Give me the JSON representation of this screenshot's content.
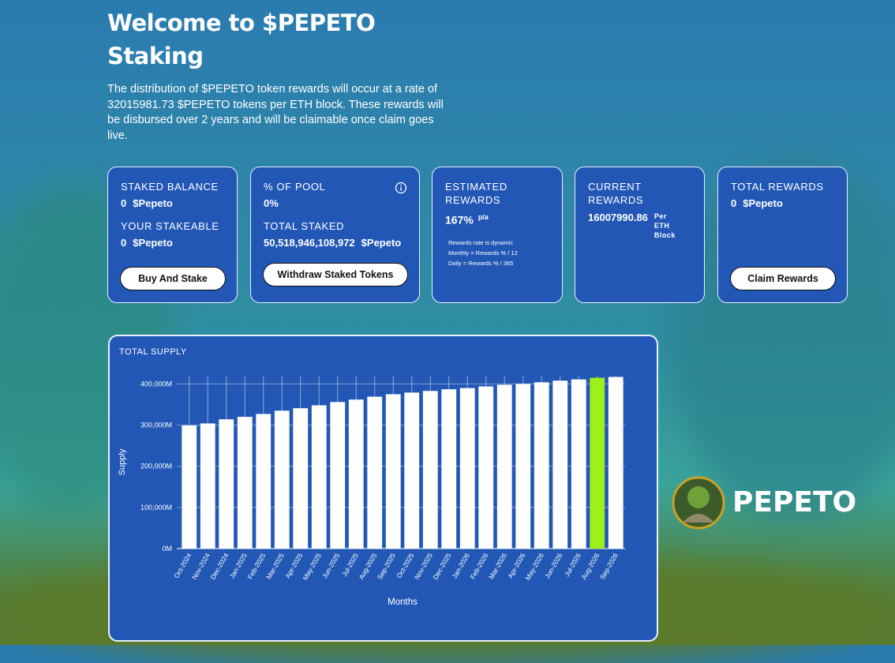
{
  "header": {
    "title_line1": "Welcome to $PEPETO",
    "title_line2": "Staking",
    "description": "The distribution of $PEPETO token rewards will occur at a rate of 32015981.73 $PEPETO tokens per ETH block. These rewards will be disbursed over 2 years and will be claimable once claim goes live."
  },
  "cards": [
    {
      "label": "STAKED BALANCE",
      "value": "0",
      "unit": "$Pepeto",
      "label2": "YOUR STAKEABLE",
      "value2": "0",
      "unit2": "$Pepeto",
      "button": "Buy And Stake"
    },
    {
      "label": "% OF POOL",
      "value": "0%",
      "label2": "TOTAL STAKED",
      "value2": "50,518,946,108,972",
      "unit2": "$Pepeto",
      "button": "Withdraw Staked Tokens"
    },
    {
      "label": "ESTIMATED REWARDS",
      "value": "167%",
      "unit": "p/a",
      "notes": [
        "Rewards rate is dynamic",
        "Monthly = Rewards % / 12",
        "Daily = Rewards % / 365"
      ]
    },
    {
      "label": "CURRENT REWARDS",
      "value": "16007990.86",
      "unit": "Per ETH Block"
    },
    {
      "label": "TOTAL REWARDS",
      "value": "0",
      "unit": "$Pepeto",
      "button": "Claim Rewards"
    }
  ],
  "logo": {
    "text": "PEPETO"
  },
  "supply_chart": {
    "type": "bar",
    "title": "TOTAL SUPPLY",
    "x_label": "Months",
    "y_label": "Supply",
    "categories": [
      "Oct-2024",
      "Nov-2024",
      "Dec-2024",
      "Jan-2025",
      "Feb-2025",
      "Mar-2025",
      "Apr-2025",
      "May-2025",
      "Jun-2025",
      "Jul-2025",
      "Aug-2025",
      "Sep-2025",
      "Oct-2025",
      "Nov-2025",
      "Dec-2025",
      "Jan-2026",
      "Feb-2026",
      "Mar-2026",
      "Apr-2026",
      "May-2026",
      "Jun-2026",
      "Jul-2026",
      "Aug-2026",
      "Sep-2026"
    ],
    "values": [
      299000,
      304000,
      314000,
      320000,
      327000,
      335000,
      341000,
      348000,
      356000,
      362000,
      369000,
      375000,
      379000,
      383000,
      387000,
      390000,
      394000,
      398000,
      400000,
      404000,
      408000,
      411000,
      415000,
      417000
    ],
    "colors": [
      "#ffffff",
      "#ffffff",
      "#ffffff",
      "#ffffff",
      "#ffffff",
      "#ffffff",
      "#ffffff",
      "#ffffff",
      "#ffffff",
      "#ffffff",
      "#ffffff",
      "#ffffff",
      "#ffffff",
      "#ffffff",
      "#ffffff",
      "#ffffff",
      "#ffffff",
      "#ffffff",
      "#ffffff",
      "#ffffff",
      "#ffffff",
      "#ffffff",
      "#9ef01a",
      "#ffffff"
    ],
    "ylim": [
      0,
      420000
    ],
    "yticks": [
      {
        "value": 0,
        "label": "0M"
      },
      {
        "value": 100000,
        "label": "100,000M"
      },
      {
        "value": 200000,
        "label": "200,000M"
      },
      {
        "value": 300000,
        "label": "300,000M"
      },
      {
        "value": 400000,
        "label": "400,000M"
      }
    ],
    "grid": true
  }
}
